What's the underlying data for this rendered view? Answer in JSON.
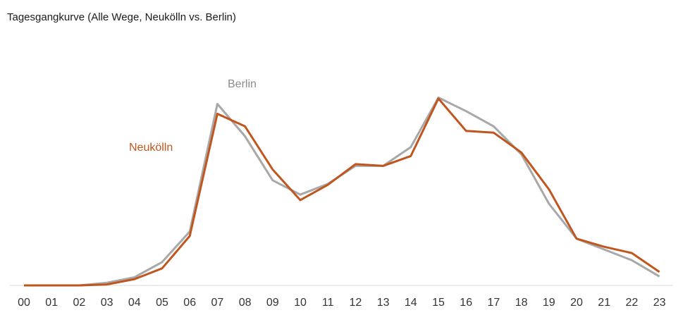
{
  "chart_data": {
    "type": "line",
    "title": "Tagesgangkurve (Alle Wege, Neukölln vs. Berlin)",
    "xlabel": "",
    "ylabel": "",
    "x": [
      "00",
      "01",
      "02",
      "03",
      "04",
      "05",
      "06",
      "07",
      "08",
      "09",
      "10",
      "11",
      "12",
      "13",
      "14",
      "15",
      "16",
      "17",
      "18",
      "19",
      "20",
      "21",
      "22",
      "23"
    ],
    "ylim": [
      0,
      100
    ],
    "grid": false,
    "series": [
      {
        "name": "Neukölln",
        "color": "#C0561E",
        "values": [
          0,
          0,
          0,
          0.5,
          3.5,
          9.5,
          27.5,
          95.5,
          88.5,
          64.5,
          47.5,
          56,
          67.5,
          66.5,
          72,
          104,
          86,
          85,
          74,
          53.5,
          26,
          21.5,
          18,
          7.5
        ]
      },
      {
        "name": "Berlin",
        "color": "#A8A8A8",
        "values": [
          0,
          0,
          0,
          1.5,
          4.5,
          13,
          30,
          101,
          83,
          58.5,
          50.5,
          56.5,
          66.5,
          66.5,
          77,
          104.5,
          97,
          88.5,
          73,
          45.5,
          26,
          20,
          14,
          5
        ]
      }
    ]
  }
}
